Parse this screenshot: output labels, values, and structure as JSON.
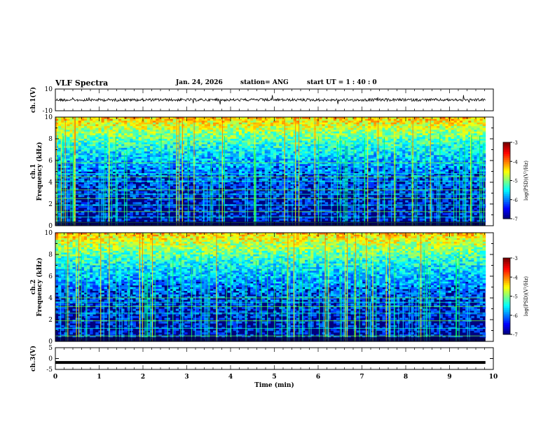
{
  "header": {
    "title": "VLF Spectra",
    "date": "Jan. 24, 2026",
    "station": "station= ANG",
    "start": "start  UT =   1 : 40 : 0"
  },
  "chart_data": [
    {
      "type": "line",
      "panel": "ch1-waveform",
      "ylabel": "ch.1(V)",
      "ylim": [
        -10,
        10
      ],
      "ytick_labels": [
        "10",
        "-10"
      ],
      "baseline": 0,
      "xlim": [
        0,
        10
      ],
      "data_end": 9.82
    },
    {
      "type": "heatmap",
      "panel": "ch1-spectrogram",
      "ylabel": "ch.1\nFrequency (kHz)",
      "ylim": [
        0,
        10
      ],
      "ytick_labels": [
        "0",
        "2",
        "4",
        "6",
        "8",
        "10"
      ],
      "xlim": [
        0,
        10
      ],
      "data_end": 9.82,
      "colorbar": {
        "label": "log(PSD)(V²/Hz)",
        "range": [
          -7,
          -3
        ],
        "tick_labels": [
          "-7",
          "-6",
          "-5",
          "-4",
          "-3"
        ]
      }
    },
    {
      "type": "heatmap",
      "panel": "ch2-spectrogram",
      "ylabel": "ch.2\nFrequency (kHz)",
      "ylim": [
        0,
        10
      ],
      "ytick_labels": [
        "0",
        "2",
        "4",
        "6",
        "8",
        "10"
      ],
      "xlim": [
        0,
        10
      ],
      "data_end": 9.82,
      "colorbar": {
        "label": "log(PSD)(V²/Hz)",
        "range": [
          -7,
          -3
        ],
        "tick_labels": [
          "-7",
          "-6",
          "-5",
          "-4",
          "-3"
        ]
      }
    },
    {
      "type": "line",
      "panel": "ch3-waveform",
      "ylabel": "ch.3(V)",
      "ylim": [
        -5,
        5
      ],
      "ytick_labels": [
        "5",
        "0",
        "-5"
      ],
      "baseline": -1.8,
      "xlim": [
        0,
        10
      ],
      "data_end": 9.82
    }
  ],
  "xaxis": {
    "label": "Time (min)",
    "tick_labels": [
      "0",
      "1",
      "2",
      "3",
      "4",
      "5",
      "6",
      "7",
      "8",
      "9",
      "10"
    ]
  },
  "colors": {
    "low": "#000080",
    "mid": "#00ff00",
    "high": "#ff0000"
  }
}
